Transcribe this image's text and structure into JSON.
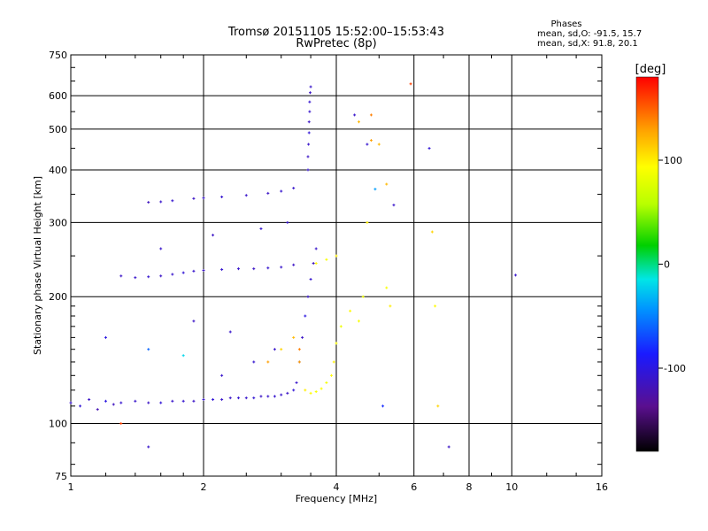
{
  "chart_data": {
    "type": "scatter",
    "title": "Tromsø 20151105 15:52:00–15:53:43",
    "subtitle": "RwPretec (8p)",
    "xlabel": "Frequency [MHz]",
    "ylabel": "Stationary phase Virtual Height [km]",
    "xscale": "log",
    "yscale": "log",
    "xlim": [
      1,
      16
    ],
    "ylim": [
      75,
      750
    ],
    "xticks": [
      "1",
      "2",
      "4",
      "6",
      "8",
      "10",
      "16"
    ],
    "yticks": [
      "75",
      "100",
      "200",
      "300",
      "400",
      "500",
      "600",
      "750"
    ],
    "grid": true,
    "phases": {
      "heading": "Phases",
      "line_o": "mean, sd,O: -91.5, 15.7",
      "line_x": "mean, sd,X:  91.8, 20.1"
    },
    "colorbar": {
      "label": "[deg]",
      "range": [
        -180,
        180
      ],
      "ticks": [
        "100",
        "0",
        "-100"
      ]
    },
    "series": [
      {
        "points": [
          [
            1.0,
            112,
            -110
          ],
          [
            1.05,
            110,
            -105
          ],
          [
            1.1,
            114,
            -112
          ],
          [
            1.15,
            108,
            -120
          ],
          [
            1.2,
            113,
            -100
          ],
          [
            1.25,
            111,
            -115
          ],
          [
            1.3,
            112,
            -108
          ],
          [
            1.4,
            113,
            -110
          ],
          [
            1.5,
            112,
            -112
          ],
          [
            1.6,
            112,
            -105
          ],
          [
            1.7,
            113,
            -110
          ],
          [
            1.8,
            113,
            -108
          ],
          [
            1.9,
            113,
            -112
          ],
          [
            2.0,
            114,
            -110
          ],
          [
            2.1,
            114,
            -105
          ],
          [
            2.2,
            114,
            -110
          ],
          [
            2.3,
            115,
            -112
          ],
          [
            2.4,
            115,
            -108
          ],
          [
            2.5,
            115,
            -110
          ],
          [
            2.6,
            115,
            -106
          ],
          [
            2.7,
            116,
            -112
          ],
          [
            2.8,
            116,
            -110
          ],
          [
            2.9,
            116,
            -108
          ],
          [
            3.0,
            117,
            -110
          ],
          [
            3.1,
            118,
            -112
          ],
          [
            3.2,
            120,
            -105
          ],
          [
            3.25,
            125,
            -110
          ],
          [
            3.3,
            140,
            -108
          ],
          [
            3.35,
            160,
            -112
          ],
          [
            3.4,
            180,
            -100
          ],
          [
            3.45,
            200,
            -110
          ],
          [
            3.5,
            220,
            -108
          ],
          [
            3.55,
            240,
            -115
          ],
          [
            3.6,
            260,
            -110
          ],
          [
            1.3,
            224,
            -112
          ],
          [
            1.4,
            222,
            -110
          ],
          [
            1.5,
            223,
            -108
          ],
          [
            1.6,
            224,
            -112
          ],
          [
            1.7,
            226,
            -110
          ],
          [
            1.8,
            228,
            -105
          ],
          [
            1.9,
            230,
            -110
          ],
          [
            2.0,
            231,
            -112
          ],
          [
            2.2,
            232,
            -108
          ],
          [
            2.4,
            233,
            -110
          ],
          [
            2.6,
            233,
            -112
          ],
          [
            2.8,
            234,
            -108
          ],
          [
            3.0,
            235,
            -110
          ],
          [
            3.2,
            238,
            -112
          ],
          [
            1.5,
            335,
            -115
          ],
          [
            1.6,
            336,
            -110
          ],
          [
            1.7,
            338,
            -108
          ],
          [
            1.9,
            342,
            -112
          ],
          [
            2.0,
            343,
            -110
          ],
          [
            2.2,
            345,
            -108
          ],
          [
            2.5,
            348,
            -110
          ],
          [
            2.8,
            352,
            -112
          ],
          [
            3.0,
            356,
            -108
          ],
          [
            3.2,
            362,
            -110
          ],
          [
            3.45,
            400,
            -108
          ],
          [
            3.45,
            430,
            -112
          ],
          [
            3.46,
            460,
            -110
          ],
          [
            3.47,
            490,
            -105
          ],
          [
            3.47,
            520,
            -112
          ],
          [
            3.48,
            550,
            -110
          ],
          [
            3.48,
            580,
            -108
          ],
          [
            3.49,
            610,
            -112
          ],
          [
            3.5,
            630,
            -110
          ],
          [
            4.4,
            540,
            -110
          ],
          [
            4.7,
            460,
            -108
          ],
          [
            6.5,
            450,
            -105
          ],
          [
            10.2,
            225,
            -110
          ],
          [
            7.2,
            88,
            -112
          ],
          [
            1.5,
            88,
            -110
          ],
          [
            1.2,
            160,
            -100
          ],
          [
            1.5,
            150,
            -60
          ],
          [
            1.8,
            145,
            -20
          ],
          [
            2.2,
            130,
            -110
          ],
          [
            2.6,
            140,
            -108
          ],
          [
            2.9,
            150,
            -110
          ],
          [
            1.9,
            175,
            -112
          ],
          [
            2.3,
            165,
            -110
          ],
          [
            1.6,
            260,
            -110
          ],
          [
            2.1,
            280,
            -112
          ],
          [
            2.7,
            290,
            -108
          ],
          [
            3.1,
            300,
            -110
          ],
          [
            3.3,
            140,
            130
          ],
          [
            3.4,
            120,
            100
          ],
          [
            3.5,
            118,
            95
          ],
          [
            3.6,
            119,
            90
          ],
          [
            3.7,
            121,
            92
          ],
          [
            3.8,
            125,
            88
          ],
          [
            3.9,
            130,
            95
          ],
          [
            3.95,
            140,
            100
          ],
          [
            4.0,
            155,
            90
          ],
          [
            4.1,
            170,
            85
          ],
          [
            3.6,
            240,
            95
          ],
          [
            3.8,
            245,
            90
          ],
          [
            4.0,
            250,
            100
          ],
          [
            4.3,
            185,
            95
          ],
          [
            4.5,
            175,
            90
          ],
          [
            4.6,
            200,
            85
          ],
          [
            4.8,
            470,
            130
          ],
          [
            4.8,
            540,
            140
          ],
          [
            4.5,
            520,
            120
          ],
          [
            5.2,
            210,
            90
          ],
          [
            5.3,
            190,
            100
          ],
          [
            6.7,
            190,
            95
          ],
          [
            6.8,
            110,
            110
          ],
          [
            5.2,
            370,
            120
          ],
          [
            4.7,
            300,
            100
          ],
          [
            3.3,
            150,
            140
          ],
          [
            3.2,
            160,
            120
          ],
          [
            3.0,
            150,
            110
          ],
          [
            2.8,
            140,
            130
          ],
          [
            6.6,
            285,
            110
          ],
          [
            1.3,
            100,
            160
          ],
          [
            5.9,
            640,
            160
          ],
          [
            5.0,
            460,
            120
          ],
          [
            5.1,
            110,
            -80
          ],
          [
            5.4,
            330,
            -110
          ],
          [
            4.9,
            360,
            -40
          ]
        ]
      }
    ]
  }
}
